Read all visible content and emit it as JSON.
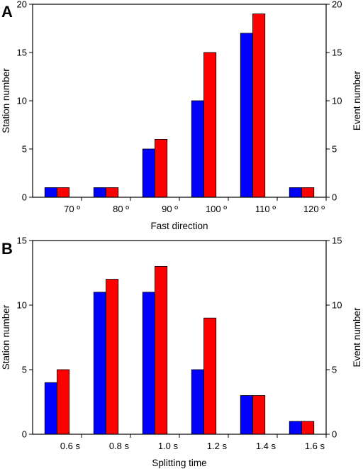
{
  "colors": {
    "station": "#0000ff",
    "event": "#ff0000",
    "axis": "#000000"
  },
  "chart_data": [
    {
      "panel_label": "A",
      "type": "bar",
      "title": "",
      "xlabel": "Fast direction",
      "ylabel_left": "Station number",
      "ylabel_right": "Event number",
      "xlim": [
        60,
        120
      ],
      "ylim": [
        0,
        20
      ],
      "x_ticks": [
        {
          "value": 70,
          "label": "70 º"
        },
        {
          "value": 80,
          "label": "80 º"
        },
        {
          "value": 90,
          "label": "90 º"
        },
        {
          "value": 100,
          "label": "100 º"
        },
        {
          "value": 110,
          "label": "110 º"
        },
        {
          "value": 120,
          "label": "120 º"
        }
      ],
      "y_ticks": [
        0,
        5,
        10,
        15,
        20
      ],
      "bin_width": 10,
      "bin_starts": [
        60,
        70,
        80,
        90,
        100,
        110
      ],
      "series": [
        {
          "values": [
            1,
            1,
            5,
            10,
            17,
            1
          ],
          "color": "#0000ff"
        },
        {
          "values": [
            1,
            1,
            6,
            15,
            19,
            1
          ],
          "color": "#ff0000"
        }
      ]
    },
    {
      "panel_label": "B",
      "type": "bar",
      "title": "",
      "xlabel": "Splitting time",
      "ylabel_left": "Station number",
      "ylabel_right": "Event number",
      "xlim": [
        0.4,
        1.6
      ],
      "ylim": [
        0,
        15
      ],
      "x_ticks": [
        {
          "value": 0.6,
          "label": "0.6 s"
        },
        {
          "value": 0.8,
          "label": "0.8 s"
        },
        {
          "value": 1.0,
          "label": "1.0 s"
        },
        {
          "value": 1.2,
          "label": "1.2 s"
        },
        {
          "value": 1.4,
          "label": "1.4 s"
        },
        {
          "value": 1.6,
          "label": "1.6 s"
        }
      ],
      "y_ticks": [
        0,
        5,
        10,
        15
      ],
      "bin_width": 0.2,
      "bin_starts": [
        0.4,
        0.6,
        0.8,
        1.0,
        1.2,
        1.4
      ],
      "series": [
        {
          "values": [
            4,
            11,
            11,
            5,
            3,
            1
          ],
          "color": "#0000ff"
        },
        {
          "values": [
            5,
            12,
            13,
            9,
            3,
            1
          ],
          "color": "#ff0000"
        }
      ]
    }
  ]
}
